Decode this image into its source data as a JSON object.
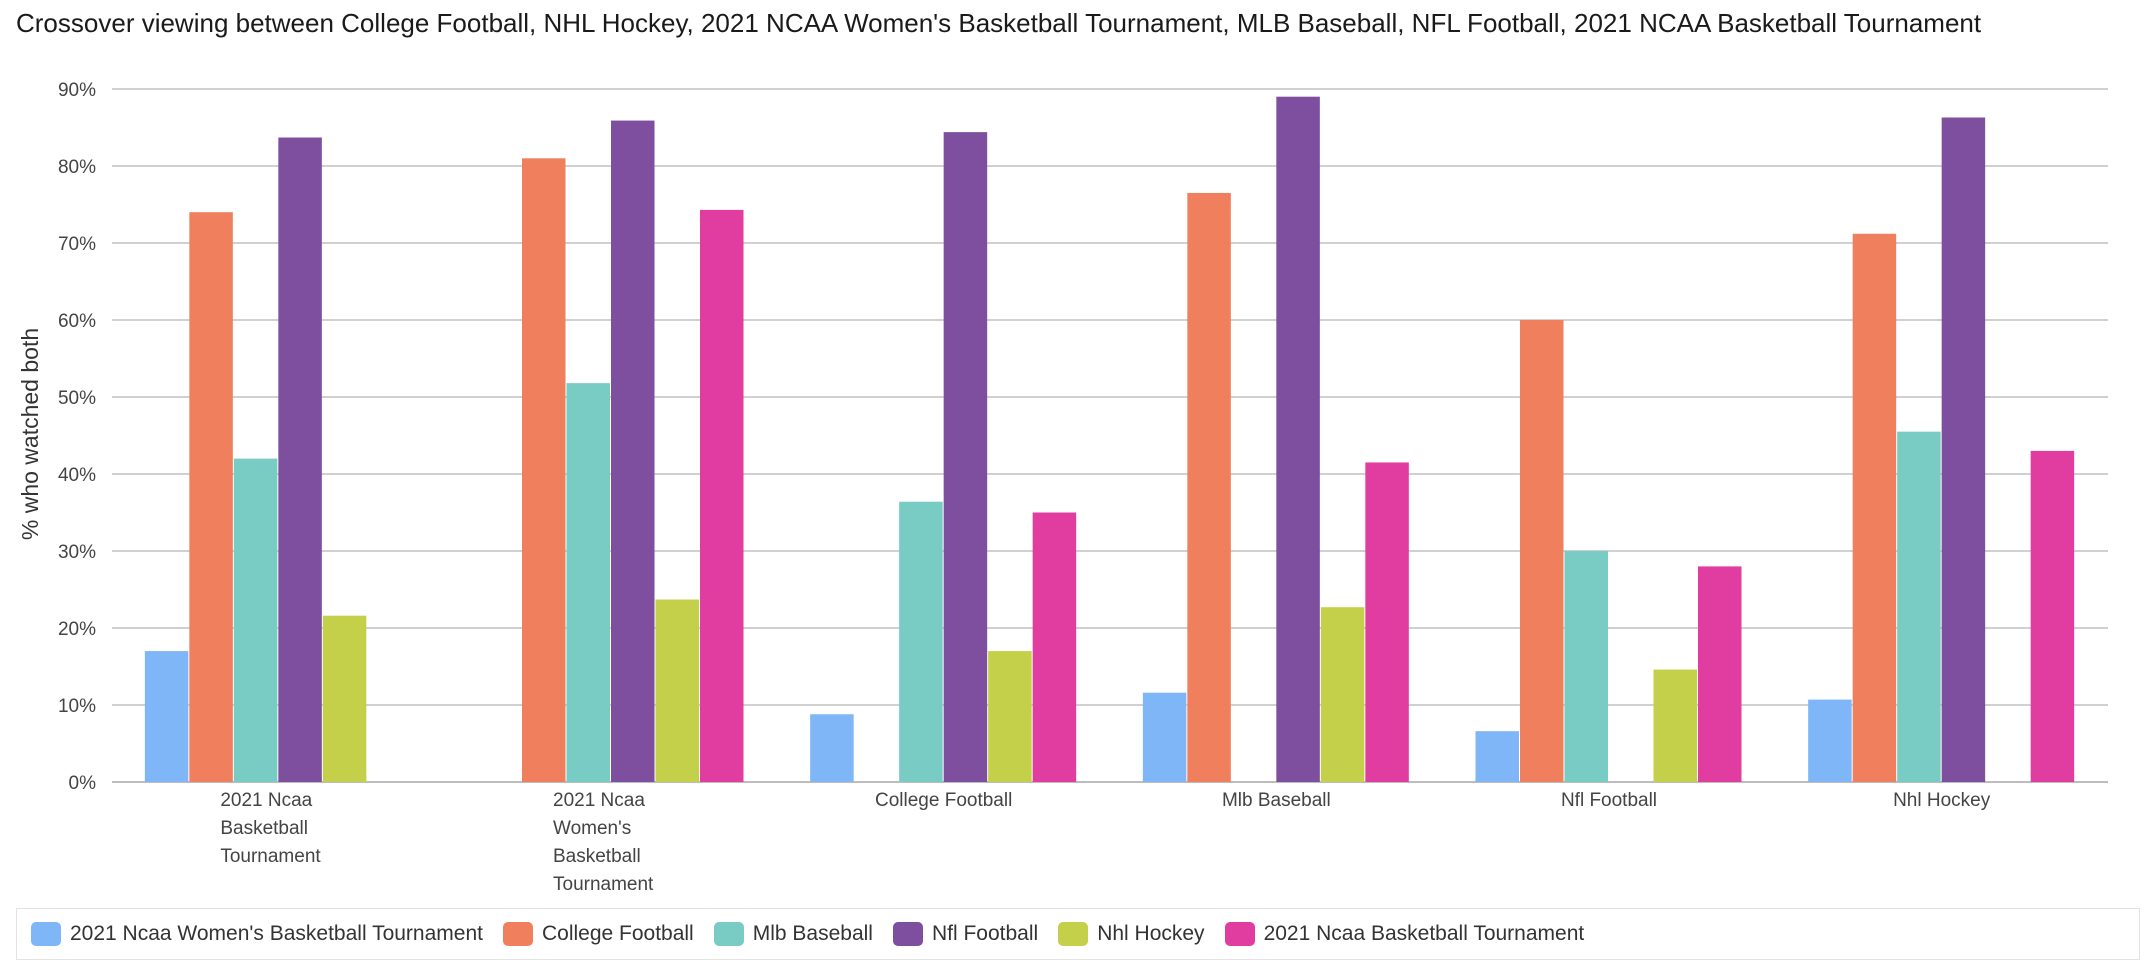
{
  "chart_data": {
    "type": "bar",
    "title": "Crossover viewing between College Football, NHL Hockey, 2021 NCAA Women's Basketball Tournament, MLB Baseball, NFL Football, 2021 NCAA Basketball Tournament",
    "xlabel": "",
    "ylabel": "% who watched both",
    "ylim": [
      0,
      90
    ],
    "yticks": [
      0,
      10,
      20,
      30,
      40,
      50,
      60,
      70,
      80,
      90
    ],
    "ytick_labels": [
      "0%",
      "10%",
      "20%",
      "30%",
      "40%",
      "50%",
      "60%",
      "70%",
      "80%",
      "90%"
    ],
    "grid": true,
    "legend_position": "bottom",
    "categories": [
      "2021 Ncaa Basketball Tournament",
      "2021 Ncaa Women's Basketball Tournament",
      "College Football",
      "Mlb Baseball",
      "Nfl Football",
      "Nhl Hockey"
    ],
    "category_lines": [
      [
        "2021 Ncaa",
        "Basketball",
        "Tournament"
      ],
      [
        "2021 Ncaa",
        "Women's",
        "Basketball",
        "Tournament"
      ],
      [
        "College Football"
      ],
      [
        "Mlb Baseball"
      ],
      [
        "Nfl Football"
      ],
      [
        "Nhl Hockey"
      ]
    ],
    "series": [
      {
        "name": "2021 Ncaa Women's Basketball Tournament",
        "color": "#7eb6f8",
        "values": [
          17,
          null,
          8.8,
          11.6,
          6.6,
          10.7
        ]
      },
      {
        "name": "College Football",
        "color": "#f07f5e",
        "values": [
          74,
          81,
          null,
          76.5,
          60,
          71.2
        ]
      },
      {
        "name": "Mlb Baseball",
        "color": "#79ccc4",
        "values": [
          42,
          51.8,
          36.4,
          null,
          30,
          45.5
        ]
      },
      {
        "name": "Nfl Football",
        "color": "#7d4f9e",
        "values": [
          83.7,
          85.9,
          84.4,
          89,
          null,
          86.3
        ]
      },
      {
        "name": "Nhl Hockey",
        "color": "#c5d04a",
        "values": [
          21.6,
          23.7,
          17,
          22.7,
          14.6,
          null
        ]
      },
      {
        "name": "2021 Ncaa Basketball Tournament",
        "color": "#e13da0",
        "values": [
          null,
          74.3,
          35,
          41.5,
          28,
          43
        ]
      }
    ]
  }
}
